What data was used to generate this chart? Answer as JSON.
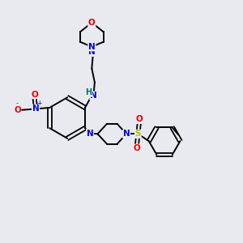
{
  "bg_color": "#e8eaf0",
  "atom_colors": {
    "C": "#000000",
    "N": "#0000ee",
    "O": "#ee0000",
    "S": "#bbbb00",
    "H": "#007070"
  },
  "bond_color": "#000000",
  "title": "",
  "scale": 1.0
}
